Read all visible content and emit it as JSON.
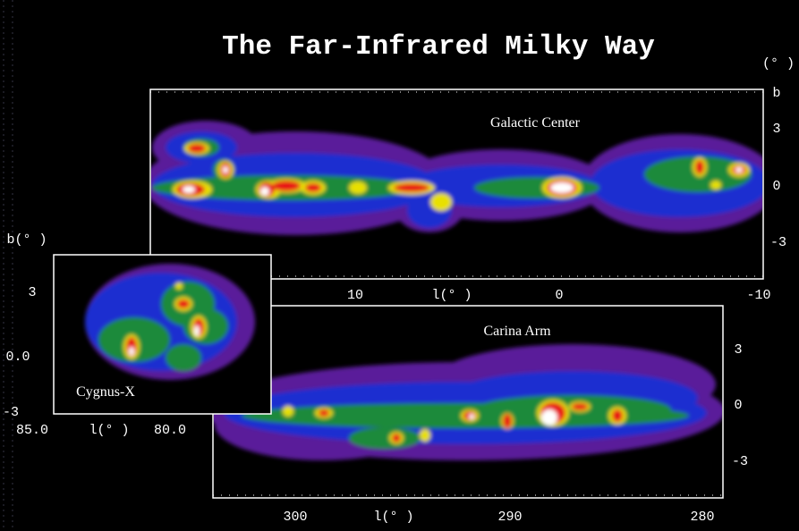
{
  "title": "The Far-Infrared Milky Way",
  "unit_label": "(° )",
  "panels": [
    {
      "label": "Galactic Center",
      "y_axis_label": "b",
      "y_ticks": [
        "3",
        "0",
        "-3"
      ],
      "x_axis_label": "l(° )",
      "x_ticks": [
        "10",
        "0",
        "-10"
      ]
    },
    {
      "label": "Carina Arm",
      "y_ticks": [
        "3",
        "0",
        "-3"
      ],
      "x_axis_label": "l(° )",
      "x_ticks": [
        "300",
        "290",
        "280"
      ]
    },
    {
      "label": "Cygnus-X",
      "y_axis_label": "b(° )",
      "y_ticks": [
        "3",
        "0.0",
        "-3"
      ],
      "x_axis_label": "l(° )",
      "x_ticks": [
        "85.0",
        "80.0"
      ]
    }
  ]
}
